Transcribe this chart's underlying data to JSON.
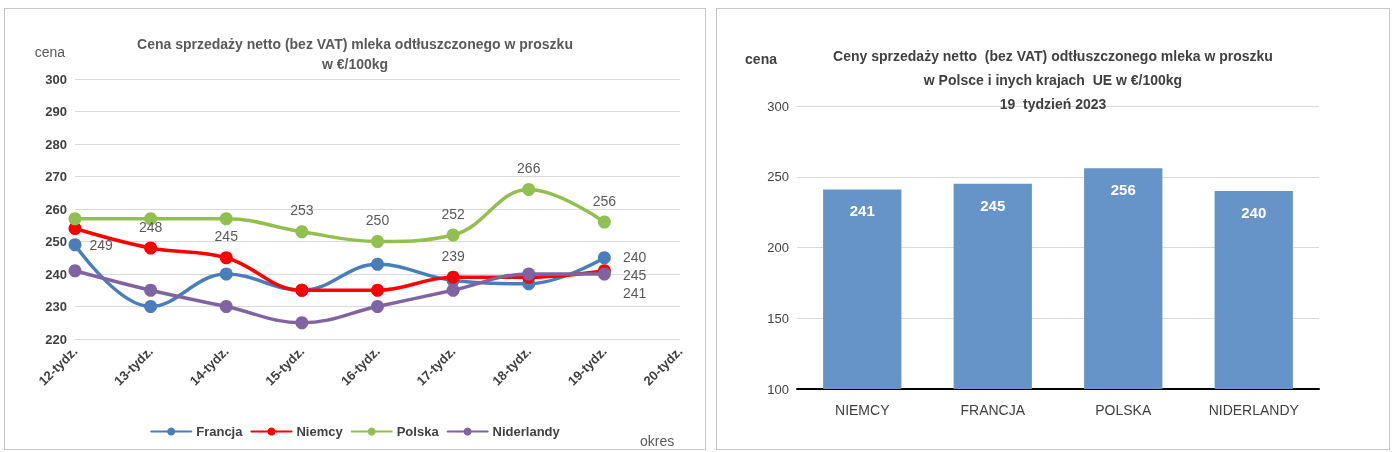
{
  "chart_data": [
    {
      "type": "line",
      "title": "Cena sprzedaży netto (bez VAT) mleka odtłuszczonego w proszku\nw €/100kg",
      "xlabel": "okres",
      "ylabel": "cena",
      "categories": [
        "12-tydz.",
        "13-tydz.",
        "14-tydz.",
        "15-tydz.",
        "16-tydz.",
        "17-tydz.",
        "18-tydz.",
        "19-tydz.",
        "20-tydz."
      ],
      "series": [
        {
          "name": "Francja",
          "color": "#4a7ebb",
          "values": [
            249,
            230,
            240,
            235,
            243,
            238,
            237,
            245,
            null
          ],
          "value_labels": [
            "249",
            null,
            null,
            null,
            null,
            null,
            null,
            "245",
            null
          ]
        },
        {
          "name": "Niemcy",
          "color": "#ff0000",
          "values": [
            254,
            248,
            245,
            235,
            235,
            239,
            239,
            241,
            null
          ],
          "value_labels": [
            null,
            "248",
            "245",
            null,
            null,
            "239",
            null,
            "241",
            null
          ]
        },
        {
          "name": "Polska",
          "color": "#92c050",
          "values": [
            257,
            257,
            257,
            253,
            250,
            252,
            266,
            256,
            null
          ],
          "value_labels": [
            null,
            null,
            null,
            "253",
            "250",
            "252",
            "266",
            "256",
            null
          ]
        },
        {
          "name": "Niderlandy",
          "color": "#8064a2",
          "values": [
            241,
            235,
            230,
            225,
            230,
            235,
            240,
            240,
            null
          ],
          "value_labels": [
            null,
            null,
            null,
            null,
            null,
            null,
            null,
            "240",
            null
          ]
        }
      ],
      "ylim": [
        220,
        300
      ],
      "yticks": [
        220,
        230,
        240,
        250,
        260,
        270,
        280,
        290,
        300
      ],
      "grid": "y",
      "legend": "bottom",
      "marker": "circle",
      "line_style": "solid"
    },
    {
      "type": "bar",
      "title": "Ceny sprzedaży netto  (bez VAT) odtłuszczonego mleka w proszku\nw Polsce i inych krajach  UE w €/100kg\n19  tydzień 2023",
      "ylabel": "cena",
      "categories": [
        "NIEMCY",
        "FRANCJA",
        "POLSKA",
        "NIDERLANDY"
      ],
      "values": [
        241,
        245,
        256,
        240
      ],
      "color": "#6794c8",
      "ylim": [
        100,
        300
      ],
      "yticks": [
        100,
        150,
        200,
        250,
        300
      ],
      "grid": "y",
      "data_labels": true
    }
  ]
}
